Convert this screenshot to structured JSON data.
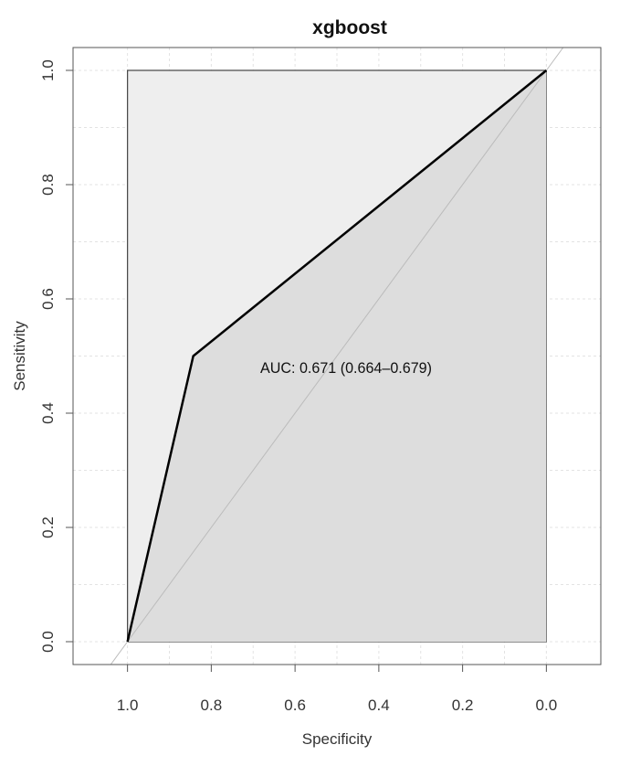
{
  "chart_data": {
    "type": "line",
    "title": "xgboost",
    "xlabel": "Specificity",
    "ylabel": "Sensitivity",
    "x_reversed": true,
    "xlim": [
      1.13,
      -0.13
    ],
    "ylim": [
      -0.04,
      1.04
    ],
    "xticks": [
      1.0,
      0.8,
      0.6,
      0.4,
      0.2,
      0.0
    ],
    "xtick_labels": [
      "1.0",
      "0.8",
      "0.6",
      "0.4",
      "0.2",
      "0.0"
    ],
    "yticks": [
      0.0,
      0.2,
      0.4,
      0.6,
      0.8,
      1.0
    ],
    "ytick_labels": [
      "0.0",
      "0.2",
      "0.4",
      "0.6",
      "0.8",
      "1.0"
    ],
    "grid": true,
    "series": [
      {
        "x": [
          1.0,
          0.843,
          0.0
        ],
        "y": [
          0.0,
          0.5,
          1.0
        ],
        "color": "#000000"
      }
    ],
    "reference_line": {
      "x": [
        1.0,
        0.0
      ],
      "y": [
        0.0,
        1.0
      ],
      "color": "#bbbbbb"
    },
    "shading": {
      "outer_fill": "#eeeeee",
      "auc_fill": "#dddddd"
    },
    "annotations": [
      {
        "text": "AUC: 0.671 (0.664–0.679)",
        "x": 0.5,
        "y": 0.48
      }
    ]
  }
}
